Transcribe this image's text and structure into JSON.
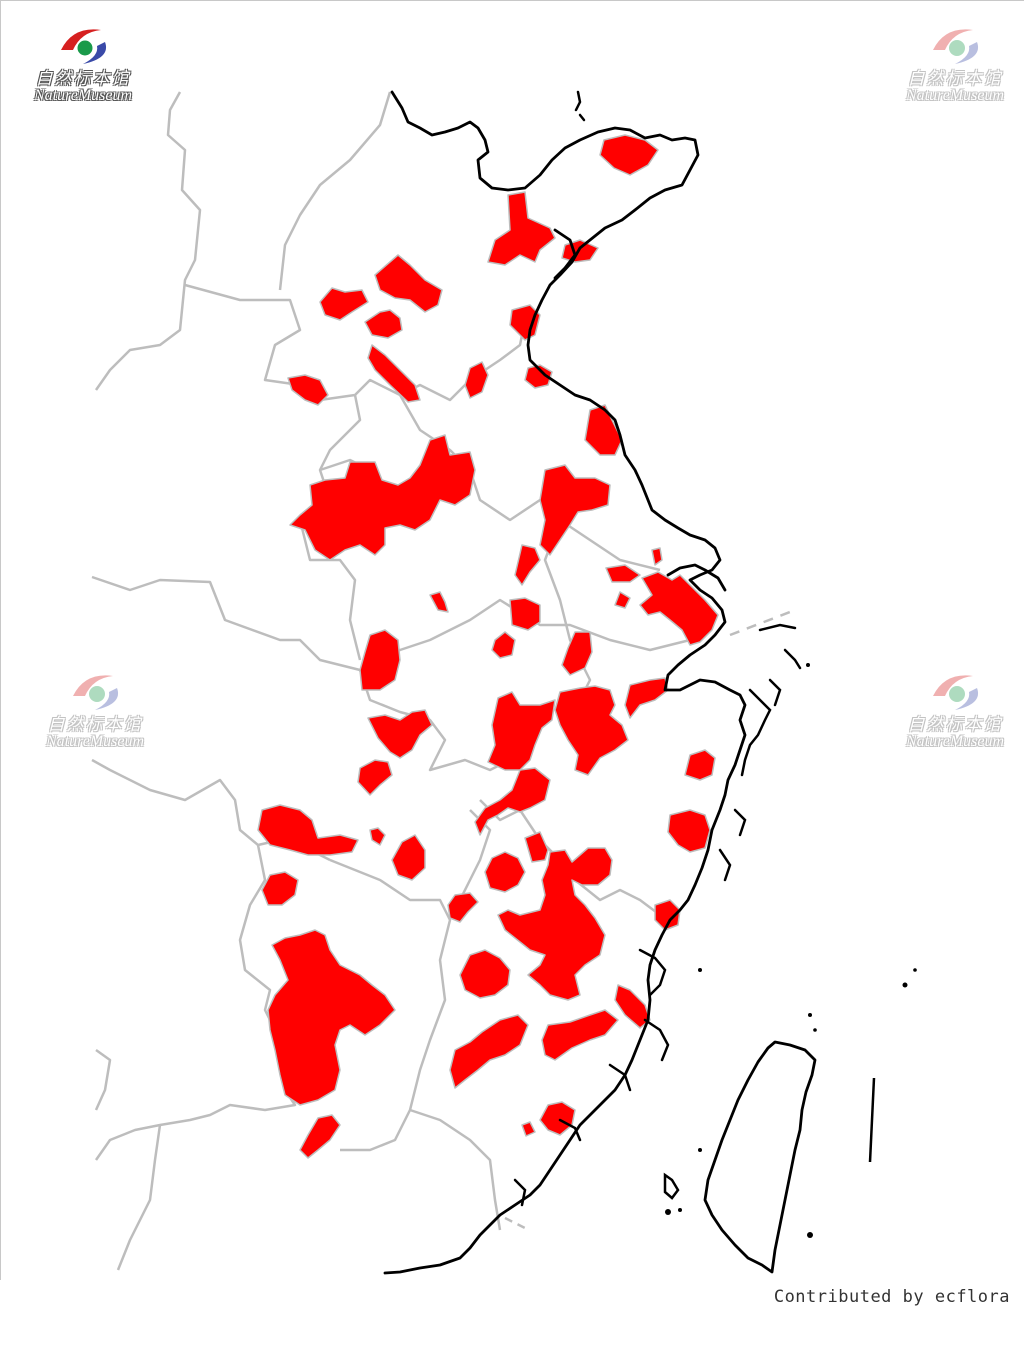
{
  "watermarks": [
    {
      "cn": "自然标本馆",
      "en": "NatureMuseum"
    },
    {
      "cn": "自然标本馆",
      "en": "NatureMuseum"
    },
    {
      "cn": "自然标本馆",
      "en": "NatureMuseum"
    },
    {
      "cn": "自然标本馆",
      "en": "NatureMuseum"
    }
  ],
  "credit": "Contributed by ecflora",
  "colors": {
    "distribution_fill": "#ff0000",
    "province_border": "#bdbdbd",
    "coastline": "#000000",
    "background": "#ffffff"
  },
  "map": {
    "layers": [
      "province-borders",
      "distribution-regions",
      "coastline",
      "islands"
    ]
  }
}
